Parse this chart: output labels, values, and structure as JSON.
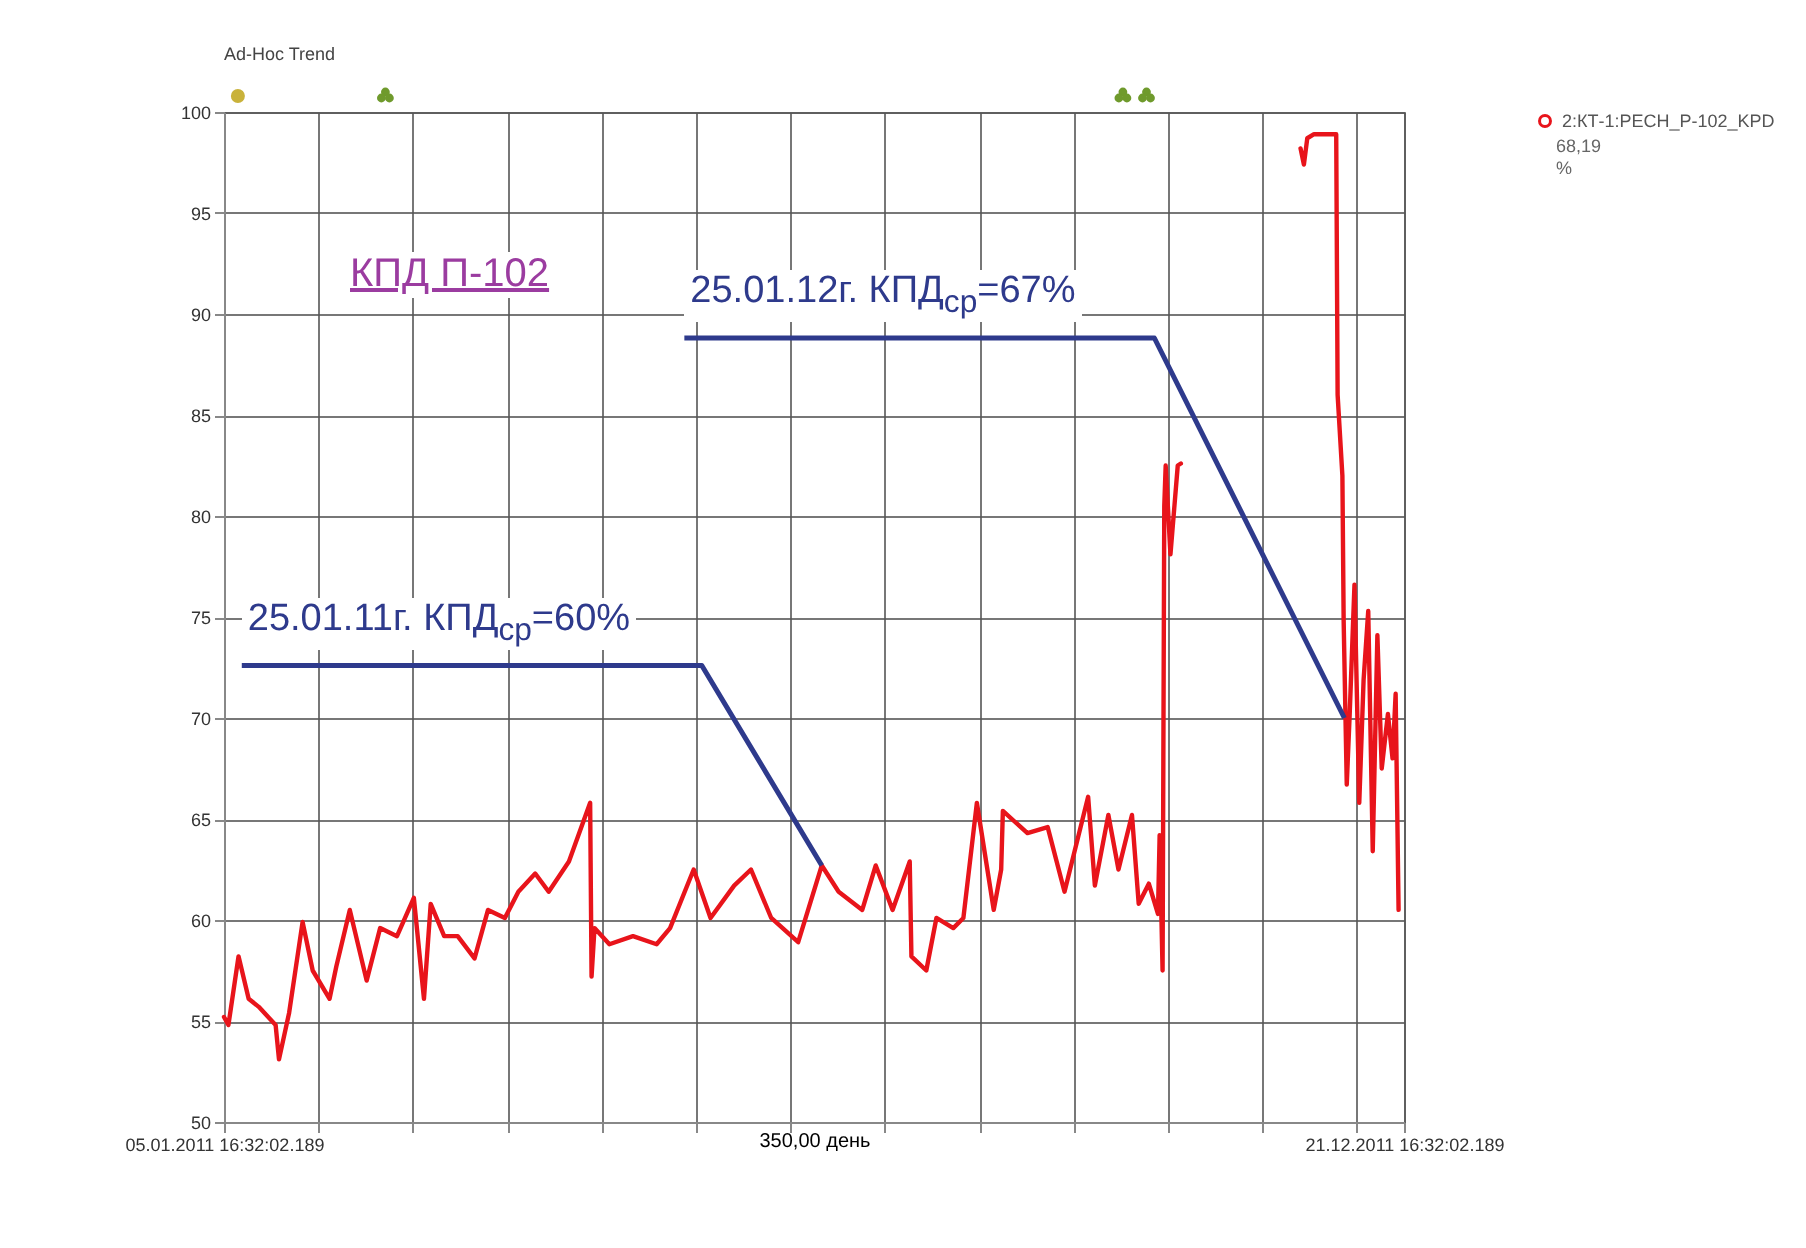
{
  "chart_data": {
    "type": "line",
    "title": "КПД П-102",
    "xlabel": "350,00 день",
    "annotations": [
      "Ad-Hoc Trend",
      "68,19",
      "%",
      {
        "text": "25.01.11г. КПД$_{ср}$=60%",
        "x": "2011-07-02",
        "y": 62.7
      },
      {
        "text": "25.01.12г. КПД$_{ср}$=67%",
        "x": "2011-12-04",
        "y": 70
      }
    ],
    "x": [
      "2011-01-05T16:32",
      "2011-01-07",
      "2011-01-10",
      "2011-01-13",
      "2011-01-16",
      "2011-01-21",
      "2011-01-22",
      "2011-01-25",
      "2011-01-29",
      "2011-02-01",
      "2011-02-06",
      "2011-02-08",
      "2011-02-12",
      "2011-02-17",
      "2011-02-21",
      "2011-02-26",
      "2011-03-03",
      "2011-03-06",
      "2011-03-08",
      "2011-03-12",
      "2011-03-16",
      "2011-03-21",
      "2011-03-25",
      "2011-03-30",
      "2011-04-03",
      "2011-04-08",
      "2011-04-12",
      "2011-04-18",
      "2011-04-24T07:00",
      "2011-04-24T17:00",
      "2011-04-25T14:00",
      "2011-04-30",
      "2011-05-07",
      "2011-05-14",
      "2011-05-18",
      "2011-05-25",
      "2011-05-30",
      "2011-06-06",
      "2011-06-11",
      "2011-06-17",
      "2011-06-25",
      "2011-07-02",
      "2011-07-07",
      "2011-07-14",
      "2011-07-18",
      "2011-07-23",
      "2011-07-28T02:00",
      "2011-07-28T14:00",
      "2011-08-02",
      "2011-08-05",
      "2011-08-10",
      "2011-08-13",
      "2011-08-17",
      "2011-08-22",
      "2011-08-24T05:00",
      "2011-08-24T17:00",
      "2011-09-01",
      "2011-09-07",
      "2011-09-12",
      "2011-09-19",
      "2011-09-21",
      "2011-09-25",
      "2011-09-28",
      "2011-10-02",
      "2011-10-04",
      "2011-10-07",
      "2011-10-09T17:00",
      "2011-10-10T05:00",
      "2011-10-11T02:00",
      "2011-10-11T14:00",
      "2011-10-12",
      "2011-10-13T10:00",
      "2011-10-15T14:00",
      "2011-10-16T12:00",
      "2011-11-01",
      "2011-11-21",
      "2011-11-22",
      "2011-11-23",
      "2011-11-25",
      "2011-12-01T14:00",
      "2011-12-02",
      "2011-12-03T10:00",
      "2011-12-03T19:00",
      "2011-12-04T17:00",
      "2011-12-05T14:00",
      "2011-12-07",
      "2011-12-08T10:00",
      "2011-12-09T17:00",
      "2011-12-11T02:00",
      "2011-12-12T10:00",
      "2011-12-13T19:00",
      "2011-12-15T02:00",
      "2011-12-16T22:00",
      "2011-12-18T07:00",
      "2011-12-19T05:00",
      "2011-12-20T02:00"
    ],
    "series": [
      {
        "name": "2:КТ-1:PECH_P-102_KPD",
        "color": "#e8141b",
        "values": [
          55.2,
          54.8,
          58.2,
          56.1,
          55.7,
          54.8,
          53.1,
          55.4,
          59.9,
          57.5,
          56.1,
          57.7,
          60.5,
          57.0,
          59.6,
          59.2,
          61.1,
          56.1,
          60.8,
          59.2,
          59.2,
          58.1,
          60.5,
          60.1,
          61.4,
          62.3,
          61.4,
          62.9,
          65.8,
          57.2,
          59.6,
          58.8,
          59.2,
          58.8,
          59.6,
          62.5,
          60.1,
          61.7,
          62.5,
          60.1,
          58.9,
          62.7,
          61.4,
          60.5,
          62.7,
          60.5,
          62.9,
          58.2,
          57.5,
          60.1,
          59.6,
          60.1,
          65.8,
          60.5,
          62.5,
          65.4,
          64.3,
          64.6,
          61.4,
          66.1,
          61.7,
          65.2,
          62.5,
          65.2,
          60.8,
          61.8,
          60.3,
          64.2,
          57.5,
          80.5,
          82.5,
          78.1,
          82.5,
          82.6,
          null,
          98.2,
          97.4,
          98.7,
          98.9,
          98.9,
          86.0,
          82.0,
          74.8,
          66.7,
          70.2,
          76.6,
          65.8,
          71.9,
          75.3,
          63.4,
          74.1,
          67.5,
          70.2,
          68.0,
          71.2,
          60.5
        ]
      }
    ],
    "xlim": [
      "2011-01-05T16:32",
      "2011-12-21T16:32"
    ],
    "xticks": [
      {
        "value": "2011-01-05T16:32",
        "label": "05.01.2011 16:32:02.189"
      },
      {
        "value": "2011-02-02T16:32",
        "label": null
      },
      {
        "value": "2011-03-02T16:32",
        "label": null
      },
      {
        "value": "2011-03-30T16:32",
        "label": null
      },
      {
        "value": "2011-04-27T16:32",
        "label": null
      },
      {
        "value": "2011-05-25T16:32",
        "label": null
      },
      {
        "value": "2011-06-22T16:32",
        "label": null
      },
      {
        "value": "2011-07-20T16:32",
        "label": null
      },
      {
        "value": "2011-08-17T16:32",
        "label": null
      },
      {
        "value": "2011-09-14T16:32",
        "label": null
      },
      {
        "value": "2011-10-12T16:32",
        "label": null
      },
      {
        "value": "2011-11-09T16:32",
        "label": null
      },
      {
        "value": "2011-12-07T16:32",
        "label": null
      },
      {
        "value": "2011-12-21T16:32",
        "label": "21.12.2011 16:32:02.189"
      }
    ],
    "ylim": [
      50,
      100
    ],
    "yticks": [
      50,
      55,
      60,
      65,
      70,
      75,
      80,
      85,
      90,
      95,
      100
    ],
    "grid": true,
    "legend": "right"
  }
}
